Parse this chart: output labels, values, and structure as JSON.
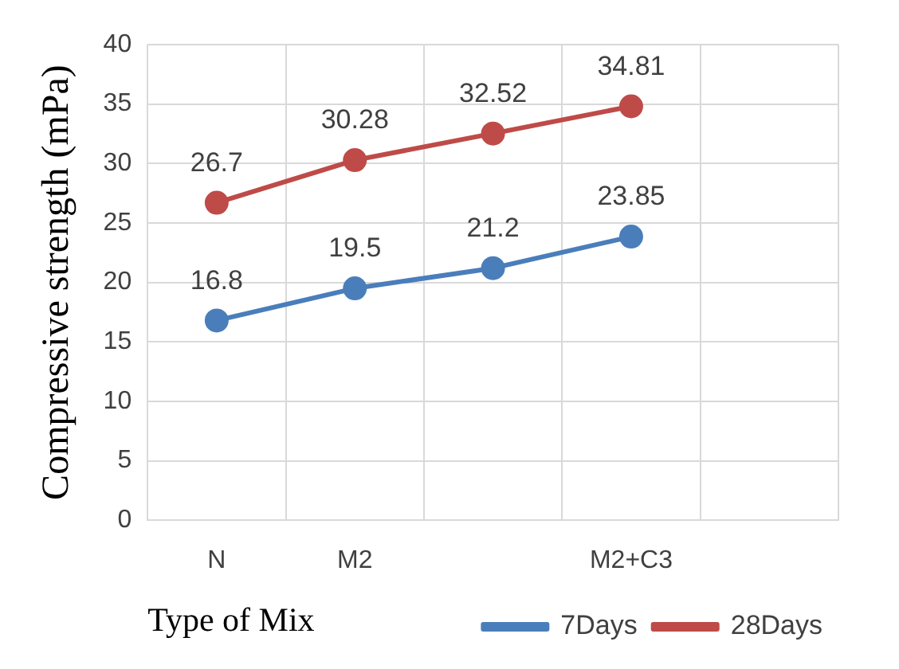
{
  "chart_data": {
    "type": "line",
    "xlabel": "Type of Mix",
    "ylabel": "Compressive strength (mPa)",
    "categories": [
      "N",
      "M2",
      null,
      "M2+C3",
      null
    ],
    "series": [
      {
        "name": "7Days",
        "color": "#4a7ebb",
        "values": [
          16.8,
          19.5,
          21.2,
          23.85,
          null
        ]
      },
      {
        "name": "28Days",
        "color": "#be4b48",
        "values": [
          26.7,
          30.28,
          32.52,
          34.81,
          null
        ]
      }
    ],
    "ylim": [
      0,
      40
    ],
    "yticks": [
      0,
      5,
      10,
      15,
      20,
      25,
      30,
      35,
      40
    ],
    "grid": true,
    "legend": "bottom right",
    "marker": "circle",
    "line_style": "solid",
    "data_labels": true
  }
}
